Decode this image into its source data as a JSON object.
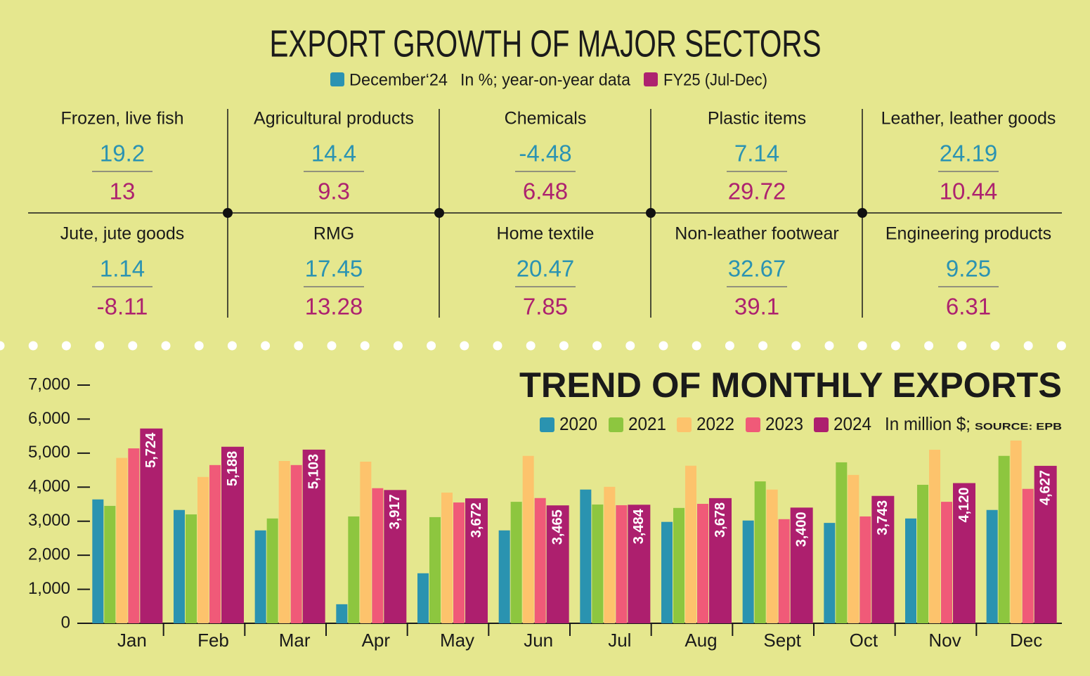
{
  "title": "EXPORT GROWTH OF MAJOR SECTORS",
  "legend": [
    {
      "label": "December‘24",
      "color": "#2b93b2"
    },
    {
      "label": "FY25 (Jul-Dec)",
      "color": "#ad226f"
    }
  ],
  "legend_note": "In %; year-on-year data",
  "sectors": [
    {
      "name": "Frozen, live fish",
      "december": 19.2,
      "fy25": 13
    },
    {
      "name": "Agricultural products",
      "december": 14.4,
      "fy25": 9.3
    },
    {
      "name": "Chemicals",
      "december": -4.48,
      "fy25": 6.48
    },
    {
      "name": "Plastic items",
      "december": 7.14,
      "fy25": 29.72
    },
    {
      "name": "Leather, leather goods",
      "december": 24.19,
      "fy25": 10.44
    },
    {
      "name": "Jute, jute goods",
      "december": 1.14,
      "fy25": -8.11
    },
    {
      "name": "RMG",
      "december": 17.45,
      "fy25": 13.28
    },
    {
      "name": "Home textile",
      "december": 20.47,
      "fy25": 7.85
    },
    {
      "name": "Non-leather footwear",
      "december": 32.67,
      "fy25": 39.1
    },
    {
      "name": "Engineering products",
      "december": 9.25,
      "fy25": 6.31
    }
  ],
  "chart_data": {
    "type": "bar",
    "title": "TREND OF MONTHLY EXPORTS",
    "unit_note": "In million $;",
    "source": "SOURCE: EPB",
    "categories": [
      "Jan",
      "Feb",
      "Mar",
      "Apr",
      "May",
      "Jun",
      "Jul",
      "Aug",
      "Sept",
      "Oct",
      "Nov",
      "Dec"
    ],
    "series": [
      {
        "name": "2020",
        "color": "#2a93b0",
        "values": [
          3640,
          3330,
          2730,
          560,
          1470,
          2730,
          3930,
          2980,
          3020,
          2950,
          3080,
          3330
        ]
      },
      {
        "name": "2021",
        "color": "#8dc63f",
        "values": [
          3450,
          3200,
          3080,
          3140,
          3120,
          3570,
          3490,
          3390,
          4170,
          4730,
          4070,
          4920
        ]
      },
      {
        "name": "2022",
        "color": "#fdc36c",
        "values": [
          4860,
          4300,
          4770,
          4750,
          3840,
          4920,
          4010,
          4630,
          3930,
          4360,
          5100,
          5370
        ]
      },
      {
        "name": "2023",
        "color": "#f05a78",
        "values": [
          5140,
          4650,
          4650,
          3970,
          3550,
          3680,
          3470,
          3510,
          3060,
          3140,
          3570,
          3950
        ]
      },
      {
        "name": "2024",
        "color": "#ad1f6e",
        "values": [
          5724,
          5188,
          5103,
          3917,
          3672,
          3465,
          3484,
          3678,
          3400,
          3743,
          4120,
          4627
        ],
        "value_labels": [
          "5,724",
          "5,188",
          "5,103",
          "3,917",
          "3,672",
          "3,465",
          "3,484",
          "3,678",
          "3,400",
          "3,743",
          "4,120",
          "4,627"
        ]
      }
    ],
    "ylim": [
      0,
      7000
    ],
    "yticks": [
      0,
      {
        "value": 1000,
        "label": "1,000"
      },
      {
        "value": 2000,
        "label": "2,000"
      },
      {
        "value": 3000,
        "label": "3,000"
      },
      {
        "value": 4000,
        "label": "4,000"
      },
      {
        "value": 5000,
        "label": "5,000"
      },
      {
        "value": 6000,
        "label": "6,000"
      },
      {
        "value": 7000,
        "label": "7,000"
      }
    ]
  }
}
